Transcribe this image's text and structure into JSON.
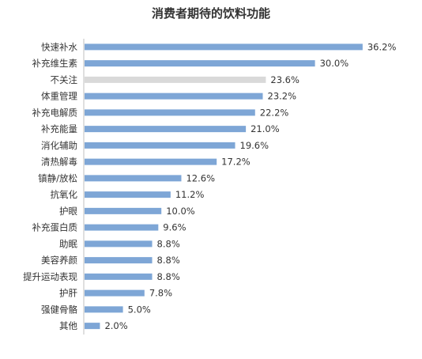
{
  "chart_data": {
    "type": "bar",
    "orientation": "horizontal",
    "title": "消费者期待的饮料功能",
    "xlabel": "",
    "ylabel": "",
    "xlim": [
      0,
      40
    ],
    "grid": false,
    "colors": {
      "default": "#7ea6d6",
      "highlight": "#d9d9d9"
    },
    "categories": [
      "快速补水",
      "补充维生素",
      "不关注",
      "体重管理",
      "补充电解质",
      "补充能量",
      "消化辅助",
      "清热解毒",
      "镇静/放松",
      "抗氧化",
      "护眼",
      "补充蛋白质",
      "助眠",
      "美容养颜",
      "提升运动表现",
      "护肝",
      "强健骨骼",
      "其他"
    ],
    "values": [
      36.2,
      30.0,
      23.6,
      23.2,
      22.2,
      21.0,
      19.6,
      17.2,
      12.6,
      11.2,
      10.0,
      9.6,
      8.8,
      8.8,
      8.8,
      7.8,
      5.0,
      2.0
    ],
    "value_labels": [
      "36.2%",
      "30.0%",
      "23.6%",
      "23.2%",
      "22.2%",
      "21.0%",
      "19.6%",
      "17.2%",
      "12.6%",
      "11.2%",
      "10.0%",
      "9.6%",
      "8.8%",
      "8.8%",
      "8.8%",
      "7.8%",
      "5.0%",
      "2.0%"
    ],
    "highlight_category": "不关注"
  }
}
